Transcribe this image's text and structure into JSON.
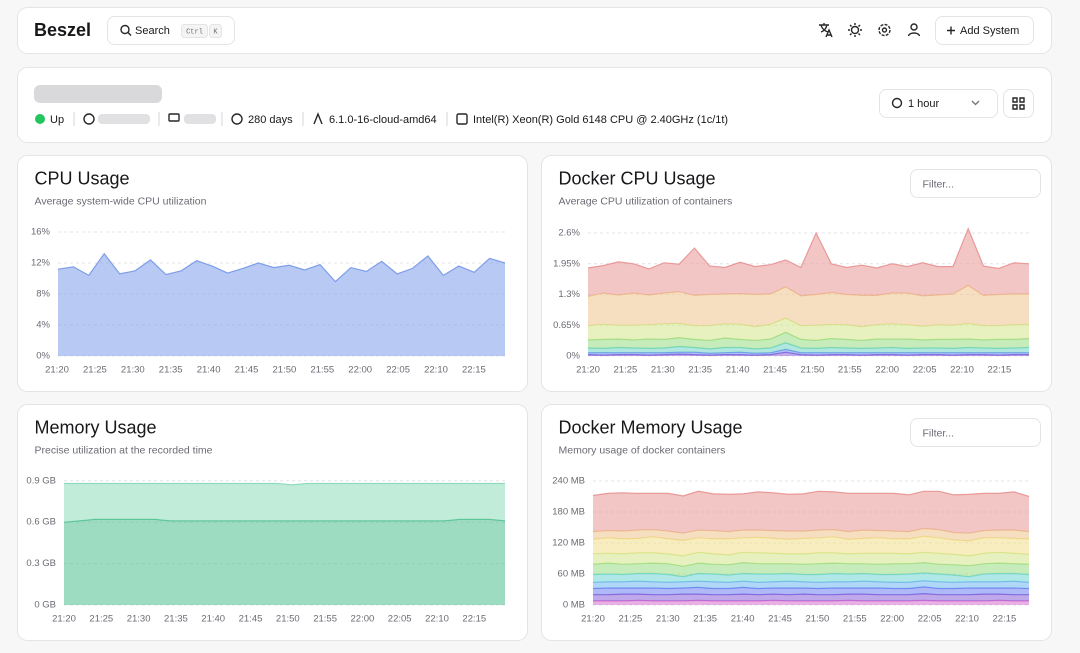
{
  "header": {
    "brand": "Beszel",
    "search": "Search",
    "keys": [
      "Ctrl",
      "K"
    ],
    "add_button": "Add System"
  },
  "system": {
    "status": "Up",
    "uptime": "280 days",
    "kernel": "6.1.0-16-cloud-amd64",
    "cpu": "Intel(R) Xeon(R) Gold 6148 CPU @ 2.40GHz (1c/1t)",
    "range": "1 hour"
  },
  "chart_data": [
    {
      "type": "area",
      "title": "CPU Usage",
      "subtitle": "Average system-wide CPU utilization",
      "xticks": [
        "21:20",
        "21:25",
        "21:30",
        "21:35",
        "21:40",
        "21:45",
        "21:50",
        "21:55",
        "22:00",
        "22:05",
        "22:10",
        "22:15"
      ],
      "ylim": [
        0,
        16
      ],
      "yticks": [
        {
          "value": 0,
          "label": "0%"
        },
        {
          "value": 4,
          "label": "4%"
        },
        {
          "value": 8,
          "label": "8%"
        },
        {
          "value": 12,
          "label": "12%"
        },
        {
          "value": 16,
          "label": "16%"
        }
      ],
      "grid": true,
      "series": [
        {
          "color": "#7e9ee9",
          "values": [
            11.2,
            11.5,
            10.4,
            13.2,
            10.6,
            11.0,
            12.4,
            10.5,
            11.0,
            12.3,
            11.6,
            10.7,
            11.3,
            12.0,
            11.4,
            11.7,
            11.1,
            11.8,
            9.6,
            11.4,
            10.9,
            12.2,
            10.6,
            11.3,
            12.9,
            10.4,
            11.6,
            10.8,
            12.6,
            12.0
          ]
        }
      ]
    },
    {
      "type": "stacked-area",
      "title": "Docker CPU Usage",
      "subtitle": "Average CPU utilization of containers",
      "filter": "Filter...",
      "xticks": [
        "21:20",
        "21:25",
        "21:30",
        "21:35",
        "21:40",
        "21:45",
        "21:50",
        "21:55",
        "22:00",
        "22:05",
        "22:10",
        "22:15"
      ],
      "ylim": [
        0,
        2.6
      ],
      "yticks": [
        {
          "value": 0,
          "label": "0%"
        },
        {
          "value": 0.65,
          "label": "0.65%"
        },
        {
          "value": 1.3,
          "label": "1.3%"
        },
        {
          "value": 1.95,
          "label": "1.95%"
        },
        {
          "value": 2.6,
          "label": "2.6%"
        }
      ],
      "grid": true,
      "series": [
        {
          "color": "#8a63d8",
          "values": [
            0.03,
            0.02,
            0.03,
            0.03,
            0.02,
            0.03,
            0.04,
            0.03,
            0.02,
            0.03,
            0.03,
            0.02,
            0.03,
            0.08,
            0.03,
            0.02,
            0.03,
            0.03,
            0.02,
            0.03,
            0.03,
            0.02,
            0.03,
            0.03,
            0.02,
            0.03,
            0.03,
            0.02,
            0.03,
            0.03
          ]
        },
        {
          "color": "#6f8ff0",
          "values": [
            0.04,
            0.05,
            0.04,
            0.04,
            0.05,
            0.04,
            0.04,
            0.05,
            0.04,
            0.04,
            0.05,
            0.04,
            0.04,
            0.06,
            0.04,
            0.05,
            0.04,
            0.04,
            0.05,
            0.04,
            0.04,
            0.05,
            0.04,
            0.04,
            0.05,
            0.04,
            0.04,
            0.05,
            0.04,
            0.04
          ]
        },
        {
          "color": "#6fd4c4",
          "values": [
            0.1,
            0.09,
            0.11,
            0.1,
            0.09,
            0.1,
            0.12,
            0.1,
            0.09,
            0.11,
            0.1,
            0.09,
            0.1,
            0.14,
            0.1,
            0.09,
            0.11,
            0.1,
            0.09,
            0.1,
            0.11,
            0.09,
            0.1,
            0.1,
            0.09,
            0.11,
            0.1,
            0.09,
            0.1,
            0.11
          ]
        },
        {
          "color": "#98dc84",
          "values": [
            0.17,
            0.19,
            0.18,
            0.17,
            0.2,
            0.18,
            0.19,
            0.17,
            0.18,
            0.2,
            0.17,
            0.18,
            0.19,
            0.22,
            0.18,
            0.17,
            0.19,
            0.18,
            0.17,
            0.19,
            0.18,
            0.2,
            0.17,
            0.18,
            0.19,
            0.18,
            0.17,
            0.19,
            0.18,
            0.19
          ]
        },
        {
          "color": "#d3e68a",
          "values": [
            0.3,
            0.32,
            0.29,
            0.31,
            0.3,
            0.33,
            0.3,
            0.29,
            0.31,
            0.3,
            0.32,
            0.29,
            0.31,
            0.3,
            0.29,
            0.32,
            0.3,
            0.31,
            0.29,
            0.3,
            0.32,
            0.3,
            0.29,
            0.31,
            0.3,
            0.33,
            0.3,
            0.29,
            0.31,
            0.3
          ]
        },
        {
          "color": "#eec48e",
          "values": [
            0.62,
            0.66,
            0.64,
            0.68,
            0.63,
            0.65,
            0.67,
            0.64,
            0.66,
            0.63,
            0.65,
            0.68,
            0.64,
            0.66,
            0.63,
            0.65,
            0.67,
            0.64,
            0.66,
            0.62,
            0.65,
            0.67,
            0.64,
            0.63,
            0.66,
            0.8,
            0.64,
            0.66,
            0.65,
            0.64
          ]
        },
        {
          "color": "#ea9898",
          "values": [
            0.6,
            0.58,
            0.7,
            0.62,
            0.55,
            0.64,
            0.58,
            1.0,
            0.6,
            0.56,
            0.66,
            0.59,
            0.62,
            0.57,
            0.6,
            1.3,
            0.61,
            0.57,
            0.64,
            0.58,
            0.62,
            0.56,
            0.7,
            0.6,
            0.58,
            1.2,
            0.62,
            0.55,
            0.66,
            0.64
          ]
        }
      ]
    },
    {
      "type": "stacked-area",
      "title": "Memory Usage",
      "subtitle": "Precise utilization at the recorded time",
      "xticks": [
        "21:20",
        "21:25",
        "21:30",
        "21:35",
        "21:40",
        "21:45",
        "21:50",
        "21:55",
        "22:00",
        "22:05",
        "22:10",
        "22:15"
      ],
      "ylim": [
        0,
        0.92
      ],
      "yticks": [
        {
          "value": 0,
          "label": "0 GB"
        },
        {
          "value": 0.3,
          "label": "0.3 GB"
        },
        {
          "value": 0.6,
          "label": "0.6 GB"
        },
        {
          "value": 0.9,
          "label": "0.9 GB"
        }
      ],
      "grid": true,
      "series": [
        {
          "color": "#4fbf8e",
          "values": [
            0.6,
            0.61,
            0.62,
            0.62,
            0.62,
            0.62,
            0.62,
            0.61,
            0.61,
            0.61,
            0.61,
            0.61,
            0.61,
            0.61,
            0.61,
            0.61,
            0.61,
            0.61,
            0.61,
            0.61,
            0.61,
            0.61,
            0.61,
            0.61,
            0.61,
            0.61,
            0.62,
            0.62,
            0.62,
            0.61
          ]
        },
        {
          "color": "#8fdcbc",
          "values": [
            0.28,
            0.27,
            0.26,
            0.26,
            0.26,
            0.26,
            0.26,
            0.27,
            0.27,
            0.27,
            0.27,
            0.27,
            0.27,
            0.27,
            0.27,
            0.26,
            0.27,
            0.27,
            0.27,
            0.27,
            0.27,
            0.27,
            0.27,
            0.27,
            0.27,
            0.27,
            0.26,
            0.26,
            0.26,
            0.27
          ]
        }
      ]
    },
    {
      "type": "stacked-area",
      "title": "Docker Memory Usage",
      "subtitle": "Memory usage of docker containers",
      "filter": "Filter...",
      "xticks": [
        "21:20",
        "21:25",
        "21:30",
        "21:35",
        "21:40",
        "21:45",
        "21:50",
        "21:55",
        "22:00",
        "22:05",
        "22:10",
        "22:15"
      ],
      "ylim": [
        0,
        240
      ],
      "yticks": [
        {
          "value": 0,
          "label": "0 MB"
        },
        {
          "value": 60,
          "label": "60 MB"
        },
        {
          "value": 120,
          "label": "120 MB"
        },
        {
          "value": 180,
          "label": "180 MB"
        },
        {
          "value": 240,
          "label": "240 MB"
        }
      ],
      "grid": true,
      "series": [
        {
          "color": "#d56fd0",
          "values": [
            8,
            8,
            8,
            9,
            8,
            8,
            8,
            9,
            8,
            8,
            8,
            8,
            9,
            8,
            8,
            8,
            8,
            9,
            8,
            8,
            8,
            8,
            9,
            8,
            8,
            8,
            8,
            9,
            8,
            8
          ]
        },
        {
          "color": "#8a63d8",
          "values": [
            12,
            12,
            13,
            12,
            12,
            12,
            13,
            12,
            12,
            12,
            13,
            12,
            12,
            12,
            13,
            12,
            12,
            12,
            13,
            12,
            12,
            12,
            13,
            12,
            12,
            12,
            13,
            12,
            12,
            12
          ]
        },
        {
          "color": "#6f7ff0",
          "values": [
            12,
            13,
            12,
            12,
            13,
            12,
            12,
            13,
            12,
            12,
            13,
            12,
            12,
            13,
            12,
            12,
            13,
            12,
            12,
            13,
            12,
            12,
            13,
            12,
            12,
            13,
            12,
            12,
            13,
            12
          ]
        },
        {
          "color": "#6fb6f0",
          "values": [
            12,
            12,
            12,
            13,
            12,
            12,
            12,
            12,
            13,
            12,
            12,
            12,
            12,
            13,
            12,
            12,
            12,
            12,
            13,
            12,
            12,
            12,
            12,
            13,
            12,
            12,
            12,
            12,
            13,
            12
          ]
        },
        {
          "color": "#6fd4d4",
          "values": [
            15,
            15,
            14,
            15,
            16,
            15,
            10,
            15,
            15,
            14,
            15,
            16,
            15,
            15,
            14,
            15,
            16,
            15,
            15,
            14,
            15,
            16,
            15,
            15,
            14,
            10,
            15,
            16,
            15,
            15
          ]
        },
        {
          "color": "#98dc84",
          "values": [
            20,
            21,
            20,
            19,
            20,
            21,
            20,
            20,
            19,
            20,
            21,
            20,
            20,
            19,
            20,
            21,
            20,
            20,
            19,
            20,
            21,
            20,
            20,
            19,
            20,
            21,
            20,
            20,
            19,
            20
          ]
        },
        {
          "color": "#d3e68a",
          "values": [
            20,
            19,
            20,
            21,
            20,
            19,
            20,
            21,
            20,
            19,
            20,
            21,
            20,
            19,
            20,
            21,
            20,
            19,
            20,
            21,
            20,
            19,
            20,
            21,
            20,
            19,
            20,
            21,
            20,
            19
          ]
        },
        {
          "color": "#f0de8a",
          "values": [
            28,
            30,
            29,
            28,
            31,
            29,
            30,
            28,
            29,
            31,
            28,
            30,
            29,
            28,
            30,
            29,
            31,
            28,
            29,
            30,
            28,
            29,
            31,
            30,
            28,
            29,
            30,
            28,
            29,
            30
          ]
        },
        {
          "color": "#eec48e",
          "values": [
            15,
            14,
            15,
            16,
            14,
            15,
            14,
            15,
            16,
            14,
            15,
            14,
            15,
            16,
            14,
            15,
            14,
            15,
            16,
            14,
            15,
            14,
            15,
            16,
            14,
            15,
            14,
            15,
            16,
            14
          ]
        },
        {
          "color": "#ea9898",
          "values": [
            70,
            72,
            74,
            71,
            70,
            73,
            72,
            75,
            71,
            72,
            70,
            74,
            73,
            71,
            72,
            75,
            73,
            74,
            71,
            72,
            73,
            71,
            72,
            74,
            73,
            75,
            72,
            71,
            74,
            68
          ]
        }
      ]
    }
  ]
}
